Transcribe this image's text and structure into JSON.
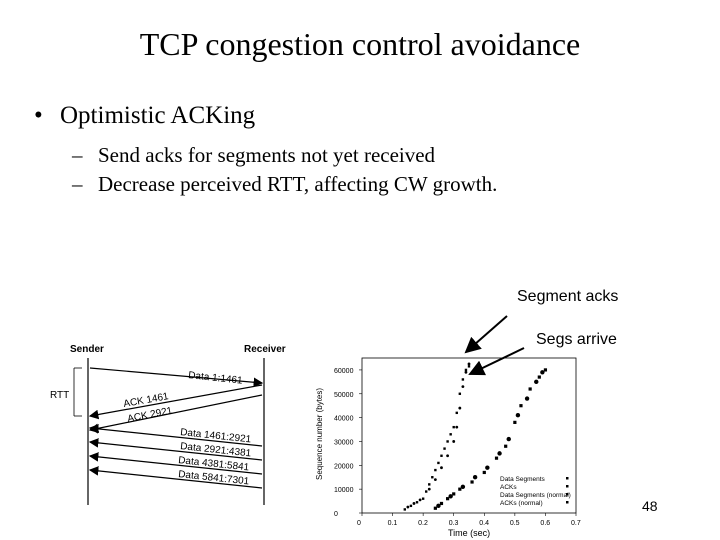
{
  "slide": {
    "title": "TCP congestion control avoidance",
    "bullet": "Optimistic ACKing",
    "subbullets": [
      "Send acks for segments not yet received",
      "Decrease perceived RTT, affecting CW growth."
    ],
    "callouts": {
      "segment_acks": "Segment acks",
      "segs_arrive": "Segs arrive"
    },
    "page_number": "48"
  },
  "diagram": {
    "sender_label": "Sender",
    "receiver_label": "Receiver",
    "rtt_label": "RTT",
    "arrows": [
      {
        "label": "Data 1:1461",
        "direction": "to-receiver"
      },
      {
        "label": "ACK 1461",
        "direction": "to-sender"
      },
      {
        "label": "ACK 2921",
        "direction": "to-sender"
      },
      {
        "label": "Data 1461:2921",
        "direction": "to-sender"
      },
      {
        "label": "Data 2921:4381",
        "direction": "to-sender"
      },
      {
        "label": "Data 4381:5841",
        "direction": "to-sender"
      },
      {
        "label": "Data 5841:7301",
        "direction": "to-sender"
      }
    ]
  },
  "chart_data": {
    "type": "scatter",
    "title": "",
    "xlabel": "Time (sec)",
    "ylabel": "Sequence number (bytes)",
    "xlim": [
      0,
      0.7
    ],
    "ylim": [
      0,
      65000
    ],
    "xticks": [
      "0",
      "0.1",
      "0.2",
      "0.3",
      "0.4",
      "0.5",
      "0.6",
      "0.7"
    ],
    "yticks": [
      "0",
      "10000",
      "20000",
      "30000",
      "40000",
      "50000",
      "60000"
    ],
    "legend": [
      "Data Segments",
      "ACKs",
      "Data Segments (normal)",
      "ACKs (normal)"
    ],
    "series": [
      {
        "name": "Data Segments",
        "points": [
          [
            0.14,
            1500
          ],
          [
            0.16,
            3000
          ],
          [
            0.18,
            4500
          ],
          [
            0.2,
            6000
          ],
          [
            0.21,
            9000
          ],
          [
            0.22,
            12000
          ],
          [
            0.23,
            15000
          ],
          [
            0.24,
            18000
          ],
          [
            0.25,
            21000
          ],
          [
            0.26,
            24000
          ],
          [
            0.27,
            27000
          ],
          [
            0.28,
            30000
          ],
          [
            0.29,
            33000
          ],
          [
            0.3,
            36000
          ],
          [
            0.31,
            42000
          ],
          [
            0.32,
            50000
          ],
          [
            0.33,
            56000
          ],
          [
            0.34,
            60000
          ],
          [
            0.35,
            61500
          ]
        ]
      },
      {
        "name": "ACKs",
        "points": [
          [
            0.15,
            2500
          ],
          [
            0.17,
            4000
          ],
          [
            0.19,
            5500
          ],
          [
            0.22,
            10000
          ],
          [
            0.24,
            14000
          ],
          [
            0.26,
            19000
          ],
          [
            0.28,
            24000
          ],
          [
            0.3,
            30000
          ],
          [
            0.31,
            36000
          ],
          [
            0.32,
            44000
          ],
          [
            0.33,
            53000
          ],
          [
            0.34,
            59000
          ],
          [
            0.35,
            62500
          ]
        ]
      },
      {
        "name": "Data Segments (normal)",
        "points": [
          [
            0.24,
            2000
          ],
          [
            0.26,
            4000
          ],
          [
            0.28,
            6000
          ],
          [
            0.3,
            8000
          ],
          [
            0.32,
            10000
          ],
          [
            0.36,
            13000
          ],
          [
            0.4,
            17000
          ],
          [
            0.44,
            23000
          ],
          [
            0.47,
            28000
          ],
          [
            0.5,
            38000
          ],
          [
            0.52,
            45000
          ],
          [
            0.55,
            52000
          ],
          [
            0.58,
            57000
          ],
          [
            0.6,
            60000
          ]
        ]
      },
      {
        "name": "ACKs (normal)",
        "points": [
          [
            0.25,
            3000
          ],
          [
            0.29,
            7000
          ],
          [
            0.33,
            11000
          ],
          [
            0.37,
            15000
          ],
          [
            0.41,
            19000
          ],
          [
            0.45,
            25000
          ],
          [
            0.48,
            31000
          ],
          [
            0.51,
            41000
          ],
          [
            0.54,
            48000
          ],
          [
            0.57,
            55000
          ],
          [
            0.59,
            59000
          ]
        ]
      }
    ]
  }
}
